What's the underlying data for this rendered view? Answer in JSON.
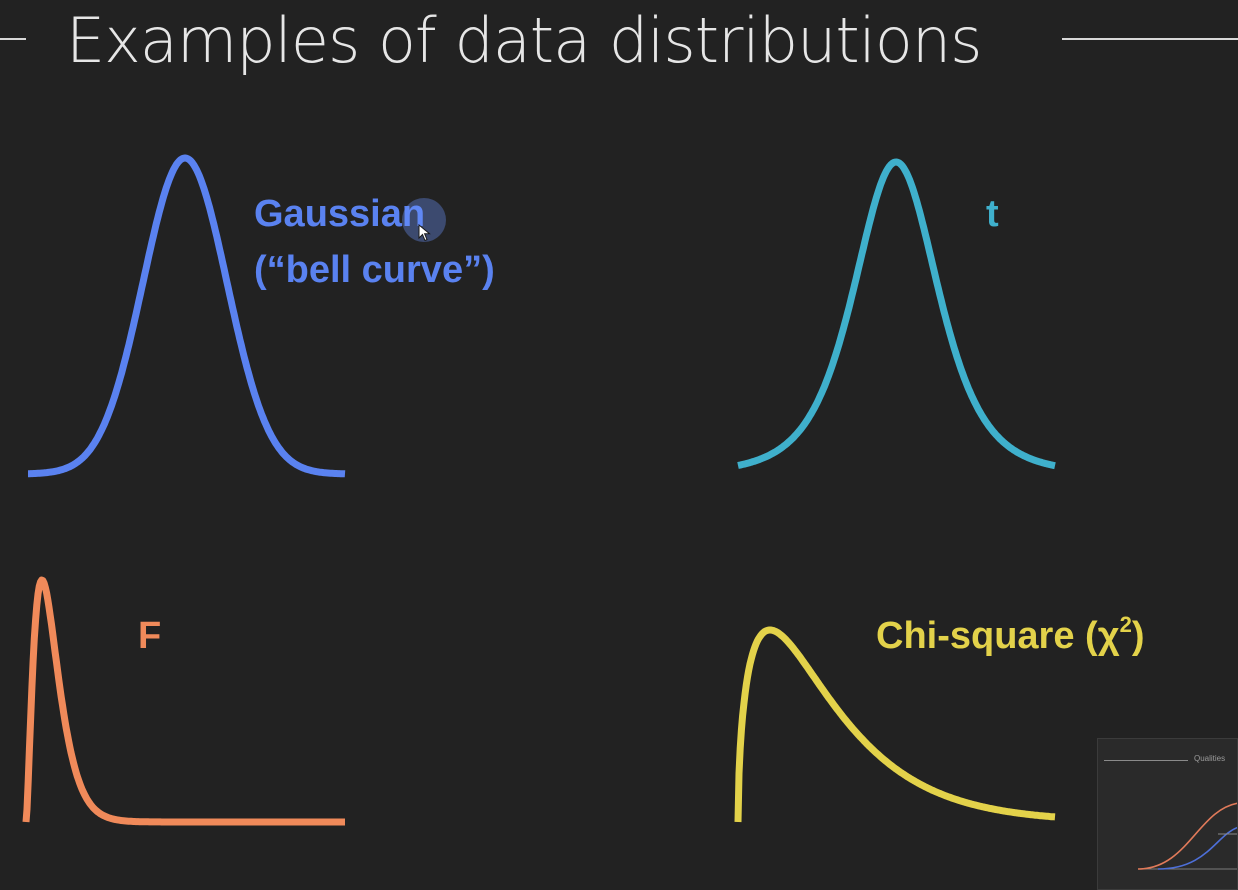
{
  "page": {
    "title": "Examples of data distributions"
  },
  "colors": {
    "background": "#222222",
    "gaussian": "#5a82f0",
    "t": "#3fb0cc",
    "f": "#f08a5a",
    "chi_square": "#e3d24a"
  },
  "distributions": [
    {
      "id": "gaussian",
      "label_lines": [
        "Gaussian",
        "(“bell curve”)"
      ]
    },
    {
      "id": "t",
      "label_lines": [
        "t"
      ]
    },
    {
      "id": "f",
      "label_lines": [
        "F"
      ]
    },
    {
      "id": "chi_square",
      "label_lines": [
        "Chi-square (χ",
        "2",
        ")"
      ]
    }
  ],
  "icons": {
    "cursor": "mouse-cursor-icon"
  },
  "thumbnail": {
    "title": "Qualities"
  }
}
